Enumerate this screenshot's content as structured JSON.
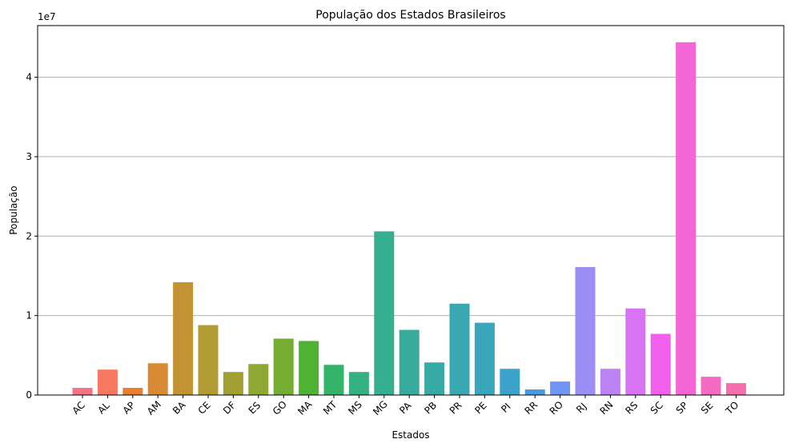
{
  "chart_data": {
    "type": "bar",
    "title": "População dos Estados Brasileiros",
    "xlabel": "Estados",
    "ylabel": "População",
    "y_offset_label": "1e7",
    "y_tick_values": [
      0,
      1,
      2,
      3,
      4
    ],
    "y_tick_labels": [
      "0",
      "1",
      "2",
      "3",
      "4"
    ],
    "ylim": [
      0,
      4.65
    ],
    "grid": "y-major",
    "categories": [
      "AC",
      "AL",
      "AP",
      "AM",
      "BA",
      "CE",
      "DF",
      "ES",
      "GO",
      "MA",
      "MT",
      "MS",
      "MG",
      "PA",
      "PB",
      "PR",
      "PE",
      "PI",
      "RR",
      "RO",
      "RJ",
      "RN",
      "RS",
      "SC",
      "SP",
      "SE",
      "TO"
    ],
    "values": [
      0.09,
      0.32,
      0.09,
      0.4,
      1.42,
      0.88,
      0.29,
      0.39,
      0.71,
      0.68,
      0.38,
      0.29,
      2.06,
      0.82,
      0.41,
      1.15,
      0.91,
      0.33,
      0.07,
      0.17,
      1.61,
      0.33,
      1.09,
      0.77,
      4.44,
      0.23,
      0.15
    ],
    "colors": [
      "#f37386",
      "#f67860",
      "#e8802f",
      "#d98a34",
      "#c39333",
      "#b29b33",
      "#a1a133",
      "#8ea833",
      "#75ad33",
      "#4eb332",
      "#34b469",
      "#35b181",
      "#36ae90",
      "#37ac9c",
      "#38aaa6",
      "#39a8b1",
      "#3aa6bb",
      "#3ba2cb",
      "#479ae0",
      "#7095f4",
      "#9c8ef4",
      "#bc82f4",
      "#d874f4",
      "#f060ec",
      "#f465d5",
      "#f56bc1",
      "#f66fad"
    ]
  }
}
